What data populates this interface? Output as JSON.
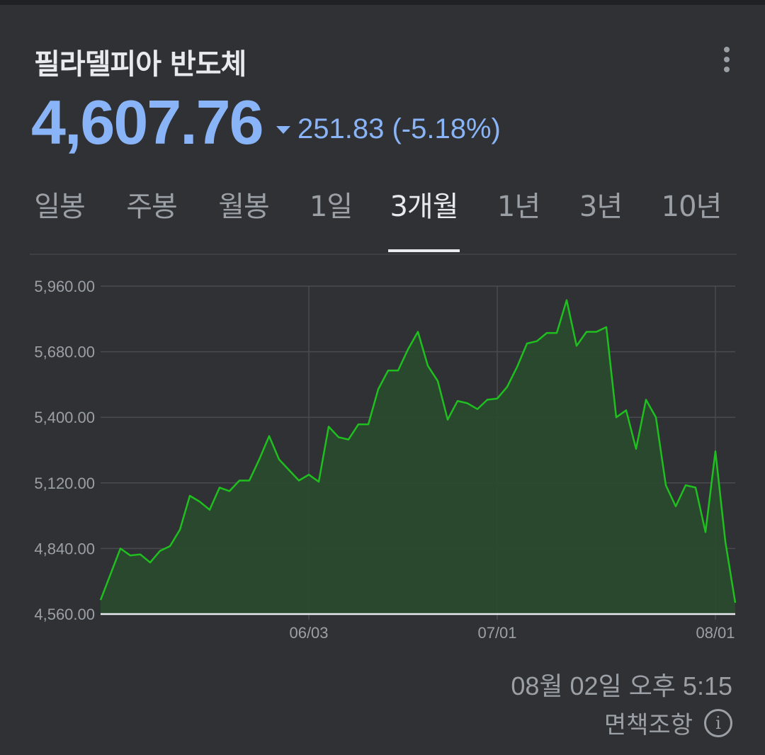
{
  "header": {
    "title": "필라델피아 반도체",
    "price": "4,607.76",
    "change": "251.83 (-5.18%)"
  },
  "tabs": [
    {
      "label": "일봉"
    },
    {
      "label": "주봉"
    },
    {
      "label": "월봉"
    },
    {
      "label": "1일"
    },
    {
      "label": "3개월"
    },
    {
      "label": "1년"
    },
    {
      "label": "3년"
    },
    {
      "label": "10년"
    }
  ],
  "active_tab": "3개월",
  "footer": {
    "timestamp": "08월 02일 오후 5:15",
    "disclaimer": "면책조항"
  },
  "colors": {
    "background": "#303134",
    "price": "#8ab4f8",
    "line": "#1fbf1f",
    "area": "#2a4a2e",
    "grid": "#4a4b4f",
    "axis_text": "#9aa0a6"
  },
  "chart_data": {
    "type": "area",
    "ylim": [
      4560,
      5960
    ],
    "yticks": [
      "5,960.00",
      "5,680.00",
      "5,400.00",
      "5,120.00",
      "4,840.00",
      "4,560.00"
    ],
    "ytick_values": [
      5960,
      5680,
      5400,
      5120,
      4840,
      4560
    ],
    "xticks": [
      {
        "label": "06/03",
        "index": 21
      },
      {
        "label": "07/01",
        "index": 40
      },
      {
        "label": "08/01",
        "index": 62
      }
    ],
    "grid": true,
    "values": [
      4620,
      4730,
      4840,
      4810,
      4815,
      4780,
      4830,
      4850,
      4920,
      5065,
      5040,
      5005,
      5100,
      5085,
      5130,
      5130,
      5220,
      5320,
      5220,
      5175,
      5130,
      5155,
      5125,
      5360,
      5315,
      5305,
      5370,
      5370,
      5520,
      5600,
      5600,
      5690,
      5765,
      5620,
      5555,
      5390,
      5470,
      5460,
      5435,
      5475,
      5480,
      5530,
      5615,
      5715,
      5725,
      5760,
      5760,
      5900,
      5705,
      5765,
      5765,
      5785,
      5400,
      5430,
      5265,
      5475,
      5400,
      5110,
      5020,
      5110,
      5100,
      4910,
      5255,
      4870,
      4608
    ]
  }
}
